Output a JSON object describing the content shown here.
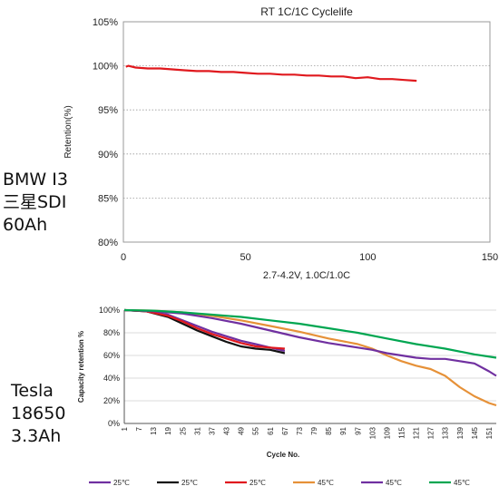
{
  "labels": {
    "bmw": "BMW I3\n三星SDI\n60Ah",
    "tesla": "Tesla\n18650\n3.3Ah"
  },
  "chart_data": [
    {
      "type": "line",
      "title": "RT 1C/1C Cyclelife",
      "xlabel": "2.7-4.2V, 1.0C/1.0C",
      "ylabel": "Retention(%)",
      "xlim": [
        0,
        150
      ],
      "ylim": [
        80,
        105
      ],
      "xticks": [
        0,
        50,
        100,
        150
      ],
      "yticks": [
        80,
        85,
        90,
        95,
        100,
        105
      ],
      "ytick_labels": [
        "80%",
        "85%",
        "90%",
        "95%",
        "100%",
        "105%"
      ],
      "grid": "horizontal dotted",
      "series": [
        {
          "color": "#e0191e",
          "x": [
            1,
            2,
            5,
            10,
            15,
            20,
            25,
            30,
            35,
            40,
            45,
            50,
            55,
            60,
            65,
            70,
            75,
            80,
            85,
            90,
            95,
            100,
            105,
            110,
            115,
            120
          ],
          "y": [
            99.9,
            100.0,
            99.8,
            99.7,
            99.7,
            99.6,
            99.5,
            99.4,
            99.4,
            99.3,
            99.3,
            99.2,
            99.1,
            99.1,
            99.0,
            99.0,
            98.9,
            98.9,
            98.8,
            98.8,
            98.6,
            98.7,
            98.5,
            98.5,
            98.4,
            98.3
          ]
        }
      ]
    },
    {
      "type": "line",
      "title": "",
      "xlabel": "Cycle No.",
      "ylabel": "Capacity retention %",
      "xlim": [
        1,
        154
      ],
      "ylim": [
        0,
        100
      ],
      "xticks": [
        1,
        7,
        13,
        19,
        25,
        31,
        37,
        43,
        49,
        55,
        61,
        67,
        73,
        79,
        85,
        91,
        97,
        103,
        109,
        115,
        121,
        127,
        133,
        139,
        145,
        151
      ],
      "yticks": [
        0,
        20,
        40,
        60,
        80,
        100
      ],
      "ytick_labels": [
        "0%",
        "20%",
        "40%",
        "60%",
        "80%",
        "100%"
      ],
      "grid": "horizontal",
      "legend_position": "bottom",
      "series": [
        {
          "name": "25℃",
          "color": "#7030a0",
          "x": [
            1,
            10,
            19,
            25,
            31,
            37,
            43,
            49,
            55,
            61,
            67
          ],
          "y": [
            100,
            99,
            96,
            91,
            86,
            81,
            77,
            73,
            70,
            67,
            64
          ]
        },
        {
          "name": "25℃",
          "color": "#111111",
          "x": [
            1,
            10,
            19,
            25,
            31,
            37,
            43,
            49,
            55,
            61,
            67
          ],
          "y": [
            100,
            99,
            94,
            88,
            82,
            77,
            72,
            68,
            66,
            65,
            62
          ]
        },
        {
          "name": "25℃",
          "color": "#e0191e",
          "x": [
            1,
            10,
            19,
            25,
            31,
            37,
            43,
            49,
            55,
            61,
            67
          ],
          "y": [
            100,
            99,
            95,
            90,
            84,
            79,
            75,
            71,
            68,
            67,
            66
          ]
        },
        {
          "name": "45℃",
          "color": "#e69138",
          "x": [
            1,
            13,
            25,
            37,
            49,
            61,
            73,
            85,
            97,
            103,
            109,
            115,
            121,
            127,
            133,
            139,
            145,
            151,
            154
          ],
          "y": [
            100,
            99.5,
            98,
            95,
            91,
            86,
            81,
            75,
            70,
            66,
            60,
            55,
            51,
            48,
            42,
            32,
            24,
            18,
            16
          ]
        },
        {
          "name": "45℃",
          "color": "#7030a0",
          "x": [
            1,
            13,
            25,
            37,
            49,
            61,
            73,
            85,
            97,
            103,
            109,
            115,
            121,
            127,
            133,
            139,
            145,
            151,
            154
          ],
          "y": [
            100,
            99,
            97,
            93,
            88,
            82,
            76,
            71,
            67,
            65,
            62,
            60,
            58,
            57,
            57,
            55,
            53,
            46,
            42
          ]
        },
        {
          "name": "45℃",
          "color": "#00a651",
          "x": [
            1,
            13,
            25,
            37,
            49,
            61,
            73,
            85,
            97,
            109,
            121,
            133,
            145,
            154
          ],
          "y": [
            100,
            99.5,
            98,
            96,
            94,
            91,
            88,
            84,
            80,
            75,
            70,
            66,
            61,
            58
          ]
        }
      ]
    }
  ]
}
